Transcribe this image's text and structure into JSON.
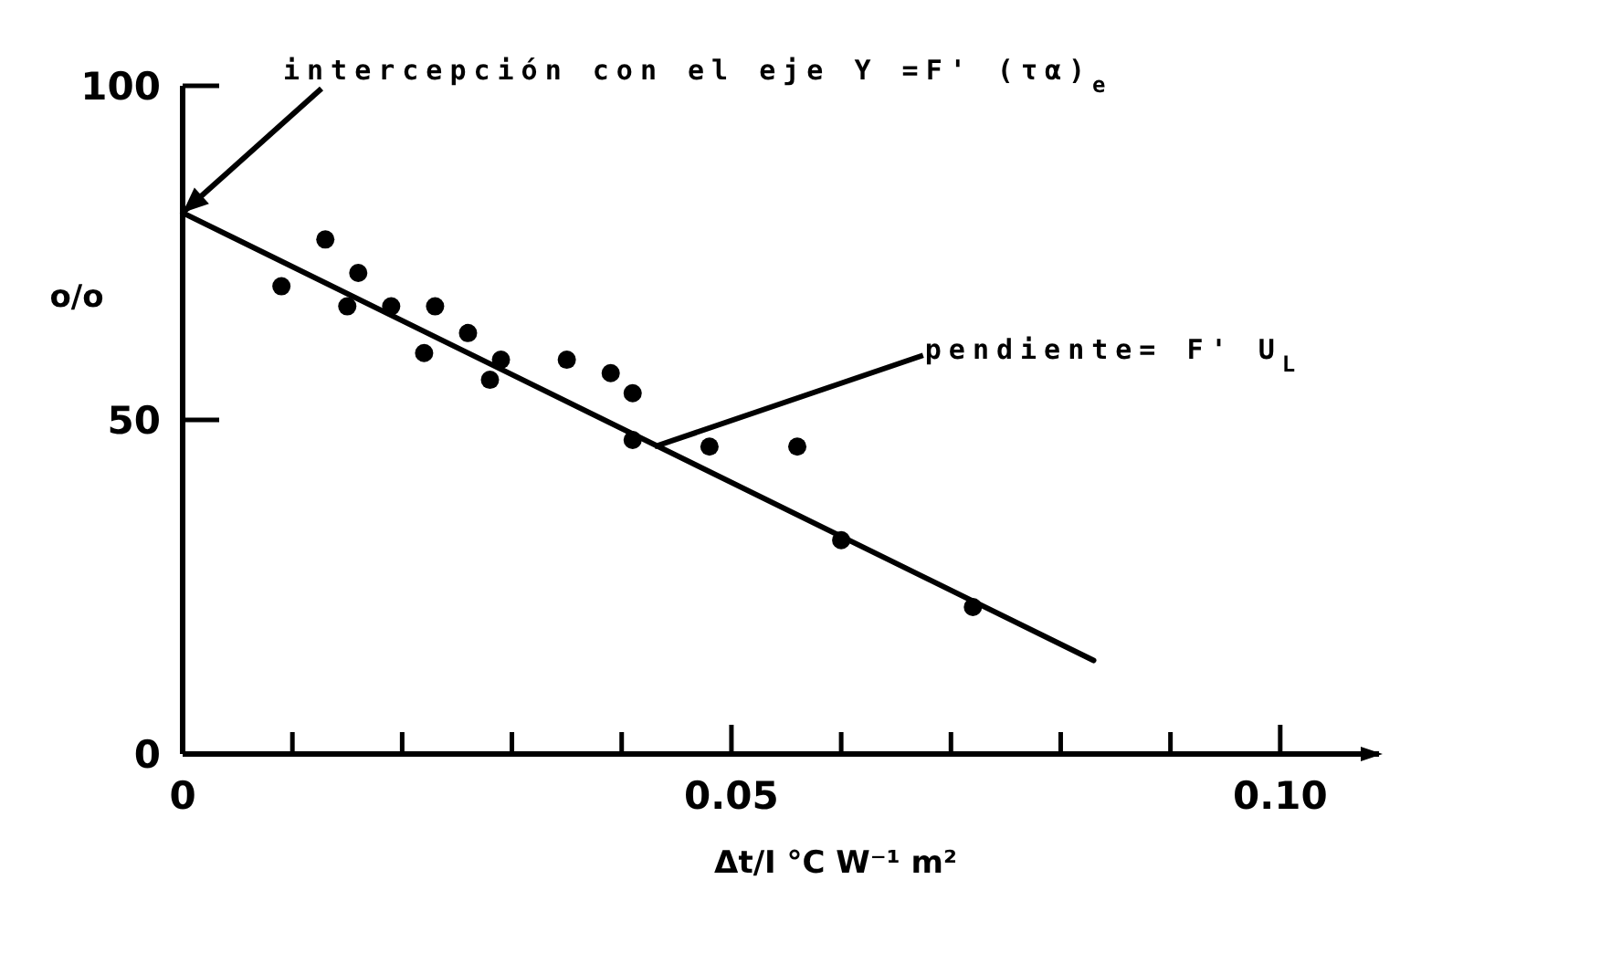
{
  "chart_data": {
    "type": "scatter",
    "xlabel": "Δt/I   °C W⁻¹ m²",
    "ylabel": "o/o",
    "xlim": [
      0,
      0.109
    ],
    "ylim": [
      0,
      100
    ],
    "xticks": [
      0,
      {
        "value": 0.01,
        "label": null
      },
      {
        "value": 0.02,
        "label": null
      },
      {
        "value": 0.03,
        "label": null
      },
      {
        "value": 0.04,
        "label": null
      },
      0.05,
      {
        "value": 0.06,
        "label": null
      },
      {
        "value": 0.07,
        "label": null
      },
      {
        "value": 0.08,
        "label": null
      },
      {
        "value": 0.09,
        "label": null
      },
      {
        "value": 0.1,
        "label": "0.10"
      }
    ],
    "yticks": [
      0,
      50,
      100
    ],
    "grid": false,
    "line_style": "solid",
    "series": [
      {
        "color": "#000000",
        "marker": "circle",
        "x": [
          0.009,
          0.013,
          0.015,
          0.016,
          0.019,
          0.023,
          0.022,
          0.026,
          0.028,
          0.029,
          0.035,
          0.039,
          0.041,
          0.041,
          0.048,
          0.056,
          0.06,
          0.072
        ],
        "values": [
          70,
          77,
          67,
          72,
          67,
          67,
          60,
          63,
          56,
          59,
          59,
          57,
          54,
          47,
          46,
          46,
          32,
          22
        ]
      },
      {
        "type": "line",
        "color": "#000000",
        "x": [
          0,
          0.083
        ],
        "values": [
          81,
          14
        ]
      }
    ],
    "annotations": [
      {
        "text": "intercepción con el eje Y =F' (τα)$_{e}$",
        "x": 0,
        "y": 81
      },
      {
        "text": "pendiente= F' U$_{L}$",
        "x": 0.043,
        "y": 46
      }
    ]
  }
}
